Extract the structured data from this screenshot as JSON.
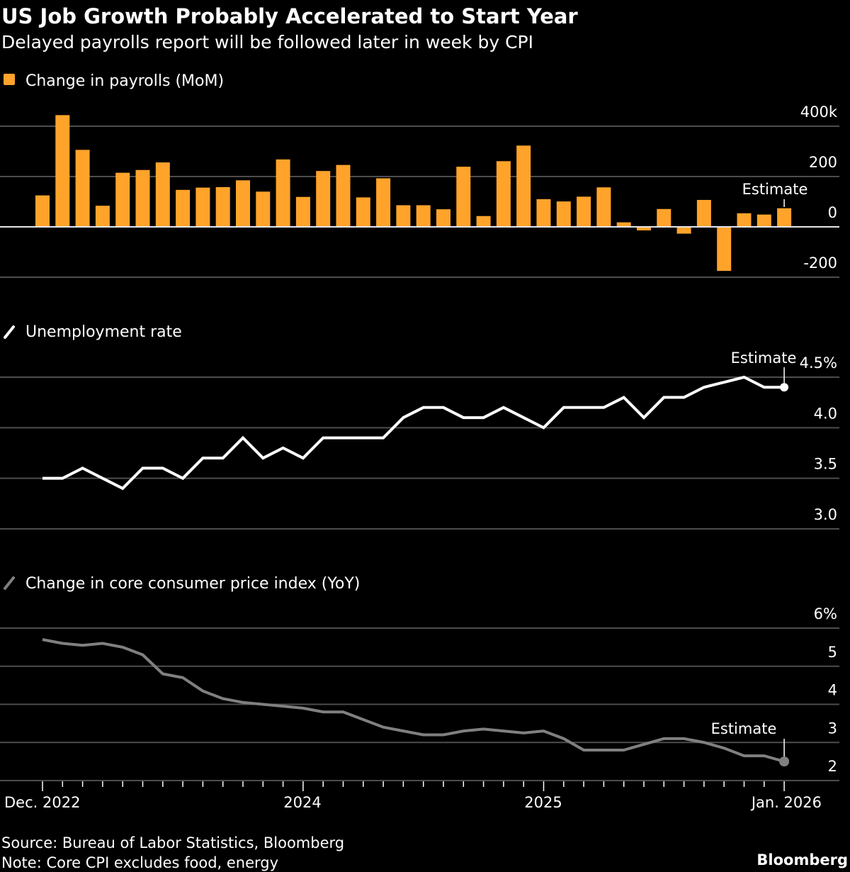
{
  "header": {
    "title": "US Job Growth Probably Accelerated to Start Year",
    "subtitle": "Delayed payrolls report will be followed later in week by CPI"
  },
  "footer": {
    "source": "Source: Bureau of Labor Statistics, Bloomberg",
    "note": "Note: Core CPI excludes food, energy",
    "brand": "Bloomberg"
  },
  "colors": {
    "payrolls": "#FFA32B",
    "unemployment": "#FFFFFF",
    "cpi": "#808080",
    "grid": "#4d4d4d",
    "background": "#000000"
  },
  "x_axis": {
    "tick_labels": [
      "Dec. 2022",
      "2024",
      "2025",
      "Jan. 2026"
    ]
  },
  "chart_data": [
    {
      "type": "bar",
      "legend": "Change in payrolls (MoM)",
      "legend_icon": "square",
      "x_range": [
        "Dec. 2022",
        "Jan. 2026"
      ],
      "frequency": "monthly",
      "values": [
        125,
        444,
        306,
        84,
        215,
        226,
        256,
        147,
        156,
        158,
        185,
        140,
        268,
        119,
        222,
        246,
        117,
        193,
        86,
        86,
        70,
        239,
        43,
        261,
        323,
        110,
        101,
        120,
        157,
        18,
        -14,
        71,
        -27,
        107,
        -175,
        54,
        49,
        74
      ],
      "ylim": [
        -200,
        400
      ],
      "yticks": [
        "400k",
        "200",
        "0",
        "-200"
      ],
      "ytick_values": [
        400,
        200,
        0,
        -200
      ],
      "annotation": "Estimate",
      "grid": true,
      "axis_side": "right"
    },
    {
      "type": "line",
      "legend": "Unemployment rate",
      "legend_icon": "line",
      "values": [
        3.5,
        3.5,
        3.6,
        3.5,
        3.4,
        3.6,
        3.6,
        3.5,
        3.7,
        3.7,
        3.9,
        3.7,
        3.8,
        3.7,
        3.9,
        3.9,
        3.9,
        3.9,
        4.1,
        4.2,
        4.2,
        4.1,
        4.1,
        4.2,
        4.1,
        4.0,
        4.2,
        4.2,
        4.2,
        4.3,
        4.1,
        4.3,
        4.3,
        4.4,
        4.45,
        4.5,
        4.4,
        4.4
      ],
      "ylim": [
        3.0,
        4.5
      ],
      "yticks": [
        "4.5%",
        "4.0",
        "3.5",
        "3.0"
      ],
      "ytick_values": [
        4.5,
        4.0,
        3.5,
        3.0
      ],
      "annotation": "Estimate",
      "grid": true,
      "axis_side": "right"
    },
    {
      "type": "line",
      "legend": "Change in core consumer price index (YoY)",
      "legend_icon": "line",
      "values": [
        5.7,
        5.6,
        5.55,
        5.6,
        5.5,
        5.3,
        4.8,
        4.7,
        4.35,
        4.15,
        4.05,
        4.0,
        3.95,
        3.9,
        3.8,
        3.8,
        3.6,
        3.4,
        3.3,
        3.2,
        3.2,
        3.3,
        3.35,
        3.3,
        3.25,
        3.3,
        3.1,
        2.8,
        2.8,
        2.8,
        2.95,
        3.1,
        3.1,
        3.0,
        2.85,
        2.65,
        2.65,
        2.5
      ],
      "ylim": [
        2,
        6
      ],
      "yticks": [
        "6%",
        "5",
        "4",
        "3",
        "2"
      ],
      "ytick_values": [
        6,
        5,
        4,
        3,
        2
      ],
      "annotation": "Estimate",
      "grid": true,
      "axis_side": "right"
    }
  ]
}
